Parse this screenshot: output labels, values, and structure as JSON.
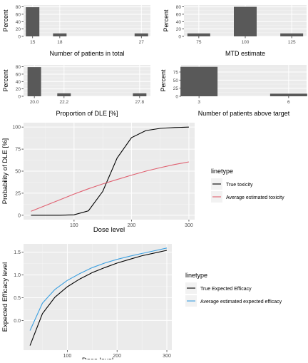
{
  "chart_data": [
    {
      "type": "bar",
      "xlabel": "Number of patients in total",
      "ylabel": "Percent",
      "categories": [
        "15",
        "18",
        "27"
      ],
      "x": [
        15,
        18,
        27
      ],
      "values": [
        79,
        8,
        8
      ],
      "xlim": [
        14,
        28
      ],
      "ylim": [
        0,
        85
      ],
      "yticks": [
        0,
        20,
        40,
        60,
        80
      ],
      "grid": true
    },
    {
      "type": "bar",
      "xlabel": "MTD estimate",
      "ylabel": "Percent",
      "categories": [
        "75",
        "100",
        "125"
      ],
      "x": [
        75,
        100,
        125
      ],
      "values": [
        8,
        80,
        8
      ],
      "xlim": [
        67,
        133
      ],
      "ylim": [
        0,
        85
      ],
      "yticks": [
        0,
        20,
        40,
        60,
        80
      ],
      "grid": true
    },
    {
      "type": "bar",
      "xlabel": "Proportion of DLE [%]",
      "ylabel": "Percent",
      "categories": [
        "20.0",
        "22.2",
        "27.8"
      ],
      "x": [
        20.0,
        22.2,
        27.8
      ],
      "values": [
        79,
        8,
        8
      ],
      "xlim": [
        19.2,
        28.6
      ],
      "ylim": [
        0,
        85
      ],
      "yticks": [
        0,
        20,
        40,
        60,
        80
      ],
      "grid": true
    },
    {
      "type": "bar",
      "xlabel": "Number of patients above target",
      "ylabel": "Percent",
      "categories": [
        "3",
        "6"
      ],
      "x": [
        3,
        6
      ],
      "values": [
        91,
        8
      ],
      "xlim": [
        2.4,
        6.6
      ],
      "ylim": [
        0,
        97
      ],
      "yticks": [
        0,
        25,
        50,
        75
      ],
      "grid": true
    },
    {
      "type": "line",
      "xlabel": "Dose level",
      "ylabel": "Probability of DLE [%]",
      "xlim": [
        12,
        310
      ],
      "ylim": [
        -5,
        105
      ],
      "xticks": [
        100,
        200,
        300
      ],
      "yticks": [
        0,
        25,
        50,
        75,
        100
      ],
      "grid": true,
      "legend_title": "linetype",
      "legend_position": "right",
      "series": [
        {
          "name": "True toxicity",
          "color": "#000000",
          "x": [
            25,
            50,
            75,
            100,
            125,
            150,
            175,
            200,
            225,
            250,
            275,
            300
          ],
          "y": [
            0,
            0,
            0,
            0.5,
            5,
            27,
            65,
            88,
            96,
            98.5,
            99.5,
            100
          ]
        },
        {
          "name": "Average estimated toxicity",
          "color": "#e06070",
          "x": [
            25,
            50,
            75,
            100,
            125,
            150,
            175,
            200,
            225,
            250,
            275,
            300
          ],
          "y": [
            4.5,
            11,
            17.5,
            24,
            30,
            35.5,
            40.5,
            45.5,
            50,
            54,
            57.5,
            60.5
          ]
        }
      ]
    },
    {
      "type": "line",
      "xlabel": "Dose level",
      "ylabel": "Expected Efficacy level",
      "xlim": [
        12,
        310
      ],
      "ylim": [
        -0.65,
        1.68
      ],
      "xticks": [
        100,
        200,
        300
      ],
      "yticks": [
        0.0,
        0.5,
        1.0,
        1.5
      ],
      "ytick_labels": [
        "0.0",
        "0.5",
        "1.0",
        "1.5"
      ],
      "grid": true,
      "legend_title": "linetype",
      "legend_position": "right",
      "series": [
        {
          "name": "True Expected Efficacy",
          "color": "#000000",
          "x": [
            25,
            50,
            75,
            100,
            125,
            150,
            175,
            200,
            225,
            250,
            275,
            300
          ],
          "y": [
            -0.55,
            0.15,
            0.51,
            0.74,
            0.91,
            1.05,
            1.16,
            1.26,
            1.34,
            1.42,
            1.48,
            1.54
          ]
        },
        {
          "name": "Average estimated expected efficacy",
          "color": "#3b9fe0",
          "x": [
            25,
            50,
            75,
            100,
            125,
            150,
            175,
            200,
            225,
            250,
            275,
            300
          ],
          "y": [
            -0.22,
            0.38,
            0.68,
            0.88,
            1.03,
            1.16,
            1.26,
            1.34,
            1.41,
            1.47,
            1.53,
            1.59
          ]
        }
      ]
    }
  ]
}
